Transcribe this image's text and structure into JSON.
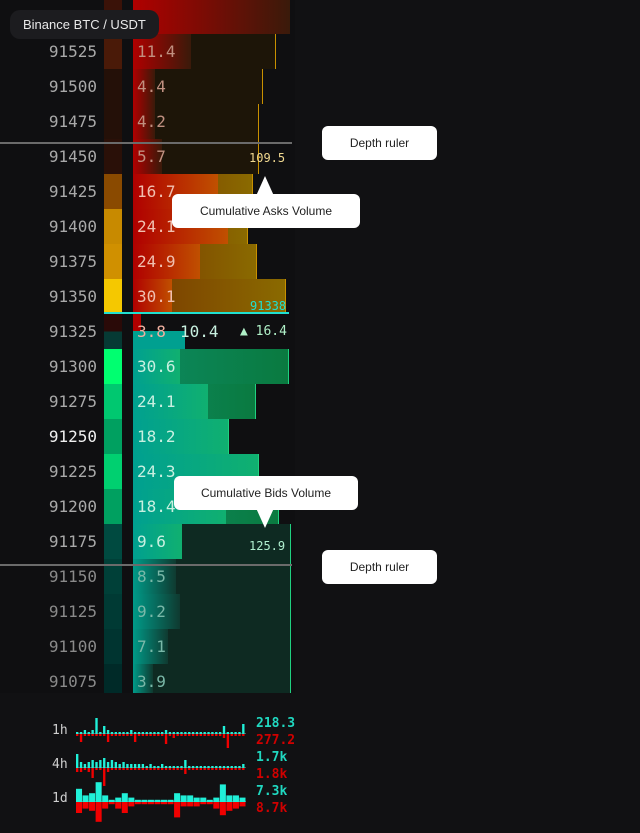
{
  "title": "Binance BTC / USDT",
  "colors": {
    "ask": "#e00000",
    "bid": "#00e0c0",
    "ask_line": "#e0a000",
    "bid_line": "#20e080",
    "last": "#20e0d0"
  },
  "asks": [
    {
      "price": "",
      "volume": ""
    },
    {
      "price": "91525",
      "volume": "11.4"
    },
    {
      "price": "91500",
      "volume": "4.4"
    },
    {
      "price": "91475",
      "volume": "4.2"
    },
    {
      "price": "91450",
      "volume": "5.7"
    },
    {
      "price": "91425",
      "volume": "16.7"
    },
    {
      "price": "91400",
      "volume": "24.1"
    },
    {
      "price": "91375",
      "volume": "24.9"
    },
    {
      "price": "91350",
      "volume": "30.1"
    }
  ],
  "mid": {
    "price": "91325",
    "ask_volume": "3.8",
    "bid_volume": "10.4",
    "delta": "▲ 16.4",
    "last_price": "91338"
  },
  "bids": [
    {
      "price": "91300",
      "volume": "30.6"
    },
    {
      "price": "91275",
      "volume": "24.1"
    },
    {
      "price": "91250",
      "volume": "18.2"
    },
    {
      "price": "91225",
      "volume": "24.3"
    },
    {
      "price": "91200",
      "volume": "18.4"
    },
    {
      "price": "91175",
      "volume": "9.6"
    },
    {
      "price": "91150",
      "volume": "8.5"
    },
    {
      "price": "91125",
      "volume": "9.2"
    },
    {
      "price": "91100",
      "volume": "7.1"
    },
    {
      "price": "91075",
      "volume": "3.9"
    }
  ],
  "cumulative": {
    "asks": "109.5",
    "bids": "125.9"
  },
  "annotations": {
    "ruler_top": "Depth ruler",
    "asks": "Cumulative Asks Volume",
    "bids": "Cumulative Bids Volume",
    "ruler_bottom": "Depth ruler"
  },
  "sparklines": [
    {
      "timeframe": "1h",
      "buy": "218.3",
      "sell": "277.2",
      "buy_values": [
        1,
        1,
        2,
        1,
        2,
        8,
        1,
        4,
        2,
        1,
        1,
        1,
        1,
        1,
        2,
        1,
        1,
        1,
        1,
        1,
        1,
        1,
        1,
        2,
        1,
        1,
        1,
        1,
        1,
        1,
        1,
        1,
        1,
        1,
        1,
        1,
        1,
        1,
        4,
        1,
        1,
        1,
        1,
        5
      ],
      "sell_values": [
        1,
        4,
        1,
        1,
        1,
        1,
        1,
        1,
        4,
        1,
        1,
        1,
        1,
        1,
        1,
        4,
        1,
        1,
        1,
        1,
        1,
        1,
        1,
        5,
        1,
        2,
        1,
        1,
        1,
        1,
        1,
        1,
        1,
        1,
        1,
        1,
        1,
        1,
        2,
        7,
        1,
        1,
        1,
        1
      ]
    },
    {
      "timeframe": "4h",
      "buy": "1.7k",
      "sell": "1.8k",
      "buy_values": [
        7,
        3,
        2,
        3,
        4,
        3,
        4,
        5,
        3,
        4,
        3,
        2,
        3,
        2,
        2,
        2,
        2,
        2,
        1,
        2,
        1,
        1,
        2,
        1,
        1,
        1,
        1,
        1,
        4,
        1,
        1,
        1,
        1,
        1,
        1,
        1,
        1,
        1,
        1,
        1,
        1,
        1,
        1,
        2
      ],
      "sell_values": [
        2,
        2,
        1,
        2,
        5,
        1,
        1,
        9,
        2,
        1,
        1,
        1,
        1,
        1,
        1,
        1,
        1,
        1,
        1,
        1,
        1,
        1,
        1,
        1,
        1,
        1,
        1,
        1,
        3,
        1,
        1,
        1,
        1,
        1,
        1,
        1,
        1,
        1,
        1,
        1,
        1,
        1,
        1,
        1
      ]
    },
    {
      "timeframe": "1d",
      "buy": "7.3k",
      "sell": "8.7k",
      "buy_values": [
        6,
        3,
        4,
        9,
        3,
        1,
        2,
        4,
        2,
        1,
        1,
        1,
        1,
        1,
        1,
        4,
        3,
        3,
        2,
        2,
        1,
        2,
        8,
        3,
        3,
        2
      ],
      "sell_values": [
        5,
        3,
        4,
        9,
        3,
        1,
        3,
        5,
        2,
        1,
        1,
        1,
        1,
        1,
        1,
        7,
        2,
        2,
        2,
        1,
        1,
        3,
        6,
        4,
        3,
        2
      ]
    }
  ]
}
